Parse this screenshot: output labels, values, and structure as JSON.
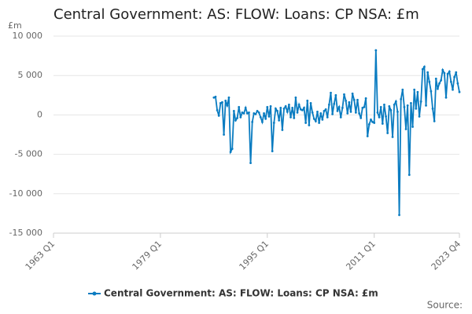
{
  "chart_data": {
    "type": "line",
    "title": "Central Government: AS: FLOW: Loans: CP NSA: £m",
    "y_axis_label": "£m",
    "source": "Source:",
    "categories": [
      "1963 Q1",
      null,
      null,
      null,
      null,
      null,
      null,
      null,
      null,
      null,
      null,
      null,
      null,
      null,
      null,
      null,
      null,
      null,
      null,
      null,
      null,
      null,
      null,
      null,
      null,
      null,
      null,
      null,
      null,
      null,
      null,
      null,
      null,
      null,
      null,
      null,
      null,
      null,
      null,
      null,
      null,
      null,
      null,
      null,
      null,
      null,
      null,
      null,
      null,
      null,
      null,
      null,
      null,
      null,
      null,
      null,
      null,
      null,
      null,
      null,
      null,
      null,
      null,
      null,
      "1979 Q1",
      null,
      null,
      null,
      null,
      null,
      null,
      null,
      null,
      null,
      null,
      null,
      null,
      null,
      null,
      null,
      null,
      null,
      null,
      null,
      null,
      null,
      null,
      null,
      null,
      null,
      null,
      null,
      null,
      null,
      null,
      null,
      null,
      null,
      null,
      null,
      null,
      null,
      null,
      null,
      null,
      null,
      null,
      null,
      null,
      null,
      null,
      null,
      null,
      null,
      null,
      null,
      null,
      null,
      null,
      null,
      null,
      null,
      null,
      null,
      null,
      null,
      null,
      null,
      "1995 Q1",
      null,
      null,
      null,
      null,
      null,
      null,
      null,
      null,
      null,
      null,
      null,
      null,
      null,
      null,
      null,
      null,
      null,
      null,
      null,
      null,
      null,
      null,
      null,
      null,
      null,
      null,
      null,
      null,
      null,
      null,
      null,
      null,
      null,
      null,
      null,
      null,
      null,
      null,
      null,
      null,
      null,
      null,
      null,
      null,
      null,
      null,
      null,
      null,
      null,
      null,
      null,
      null,
      null,
      null,
      null,
      null,
      null,
      null,
      null,
      null,
      null,
      null,
      null,
      "2011 Q1",
      null,
      null,
      null,
      null,
      null,
      null,
      null,
      null,
      null,
      null,
      null,
      null,
      null,
      null,
      null,
      null,
      null,
      null,
      null,
      null,
      null,
      null,
      null,
      null,
      null,
      null,
      null,
      null,
      null,
      null,
      null,
      null,
      null,
      null,
      null,
      null,
      null,
      null,
      null,
      null,
      null,
      null,
      null,
      null,
      null,
      null,
      null,
      null,
      null,
      null,
      "2023 Q4"
    ],
    "series": [
      {
        "name": "Central Government: AS: FLOW: Loans: CP NSA: £m",
        "color": "#0a7cc1",
        "values": [
          null,
          null,
          null,
          null,
          null,
          null,
          null,
          null,
          null,
          null,
          null,
          null,
          null,
          null,
          null,
          null,
          null,
          null,
          null,
          null,
          null,
          null,
          null,
          null,
          null,
          null,
          null,
          null,
          null,
          null,
          null,
          null,
          null,
          null,
          null,
          null,
          null,
          null,
          null,
          null,
          null,
          null,
          null,
          null,
          null,
          null,
          null,
          null,
          null,
          null,
          null,
          null,
          null,
          null,
          null,
          null,
          null,
          null,
          null,
          null,
          null,
          null,
          null,
          null,
          null,
          null,
          null,
          null,
          null,
          null,
          null,
          null,
          null,
          null,
          null,
          null,
          null,
          null,
          null,
          null,
          null,
          null,
          null,
          null,
          null,
          null,
          null,
          null,
          null,
          null,
          null,
          null,
          null,
          null,
          null,
          null,
          2200,
          2300,
          600,
          -100,
          1500,
          1600,
          -2500,
          1800,
          1200,
          2200,
          -4700,
          -4300,
          500,
          -700,
          -400,
          1000,
          -300,
          300,
          200,
          900,
          200,
          300,
          -6100,
          -900,
          200,
          100,
          500,
          300,
          -300,
          -900,
          200,
          -500,
          1000,
          -200,
          1100,
          -4600,
          -1000,
          800,
          500,
          -700,
          900,
          -1900,
          800,
          1100,
          400,
          1300,
          -300,
          900,
          -400,
          2200,
          300,
          1300,
          700,
          600,
          900,
          -1000,
          1800,
          -1300,
          1500,
          300,
          -500,
          -800,
          400,
          -1000,
          200,
          -600,
          500,
          700,
          -300,
          1300,
          2800,
          100,
          1400,
          2500,
          500,
          1000,
          -300,
          900,
          2600,
          1800,
          200,
          1600,
          400,
          2700,
          1900,
          300,
          1900,
          200,
          -400,
          900,
          1000,
          2100,
          -2700,
          -1200,
          -600,
          -900,
          -1000,
          8200,
          300,
          -300,
          1000,
          -1100,
          1300,
          -200,
          -2300,
          1100,
          600,
          -2800,
          1300,
          1700,
          400,
          -12700,
          2000,
          3200,
          1000,
          -1800,
          1200,
          -7600,
          1500,
          -1500,
          3200,
          800,
          2900,
          -200,
          1700,
          5800,
          6100,
          1200,
          5400,
          4200,
          3000,
          800,
          -800,
          4600,
          3300,
          4000,
          4400,
          5700,
          5300,
          2200,
          5200,
          5500,
          4200,
          3200,
          4800,
          5400,
          4000,
          2900
        ]
      }
    ],
    "ylim": [
      -15000,
      10000
    ],
    "yticks": [
      {
        "value": -15000,
        "label": "-15 000"
      },
      {
        "value": -10000,
        "label": "-10 000"
      },
      {
        "value": -5000,
        "label": "-5 000"
      },
      0,
      {
        "value": 5000,
        "label": "5 000"
      },
      {
        "value": 10000,
        "label": "10 000"
      }
    ],
    "grid": true
  }
}
